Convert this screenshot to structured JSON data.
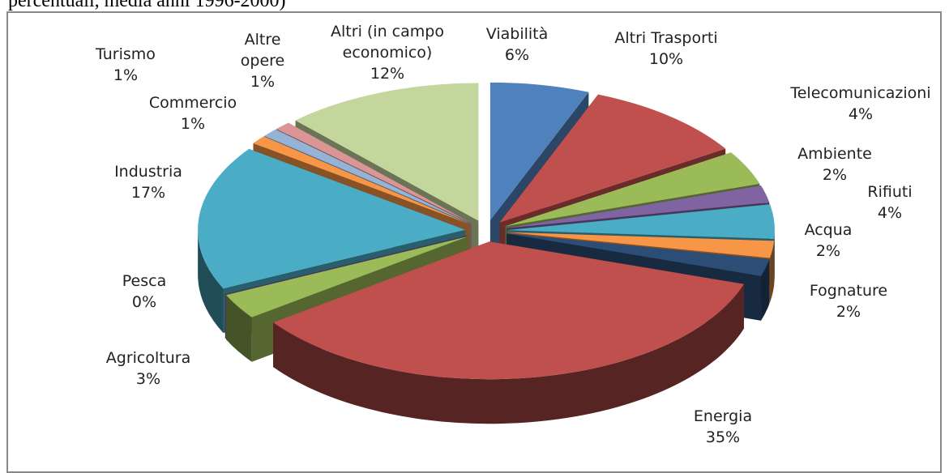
{
  "chart_data": {
    "type": "pie",
    "caption": "percentuali, media anni 1996-2000)",
    "categories": [
      "Viabilità",
      "Altri Trasporti",
      "Telecomunicazioni",
      "Ambiente",
      "Rifiuti",
      "Acqua",
      "Fognature",
      "Energia",
      "Agricoltura",
      "Pesca",
      "Industria",
      "Commercio",
      "Turismo",
      "Altre opere",
      "Altri (in campo economico)"
    ],
    "values": [
      6,
      10,
      4,
      2,
      4,
      2,
      2,
      35,
      3,
      0,
      17,
      1,
      1,
      1,
      12
    ],
    "value_labels": [
      "6%",
      "10%",
      "4%",
      "2%",
      "4%",
      "2%",
      "2%",
      "35%",
      "3%",
      "0%",
      "17%",
      "1%",
      "1%",
      "1%",
      "12%"
    ],
    "colors": [
      "#4f81bd",
      "#c0504d",
      "#9bbb59",
      "#8064a2",
      "#4bacc6",
      "#f79646",
      "#2c4d75",
      "#c0504d",
      "#9bbb59",
      "#8064a2",
      "#4bacc6",
      "#f79646",
      "#95b3d7",
      "#d99694",
      "#c3d69b"
    ]
  }
}
